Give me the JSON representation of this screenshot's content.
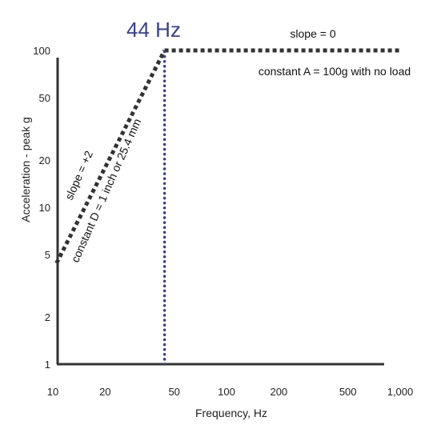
{
  "chart_data": {
    "type": "line",
    "xlabel": "Frequency, Hz",
    "ylabel": "Acceleration - peak g",
    "x_scale": "log",
    "y_scale": "log",
    "xlim": [
      10,
      1000
    ],
    "ylim": [
      1,
      100
    ],
    "x_ticks": [
      10,
      20,
      50,
      100,
      200,
      500,
      1000
    ],
    "x_tick_labels": [
      "10",
      "20",
      "50",
      "100",
      "200",
      "500",
      "1,000"
    ],
    "y_ticks": [
      1,
      2,
      5,
      10,
      20,
      50,
      100
    ],
    "y_tick_labels": [
      "1",
      "2",
      "5",
      "10",
      "20",
      "50",
      "100"
    ],
    "grid": false,
    "series": [
      {
        "style": "dashed",
        "color": "#333333",
        "x": [
          10.5,
          44
        ],
        "y": [
          4.4,
          100
        ]
      },
      {
        "style": "dashed",
        "color": "#333333",
        "x": [
          44,
          1000
        ],
        "y": [
          100,
          100
        ]
      },
      {
        "style": "dotted",
        "color": "#3b3f86",
        "x": [
          44,
          44
        ],
        "y": [
          1,
          100
        ]
      }
    ],
    "annotations": {
      "marker_freq": "44 Hz",
      "slope_zero": "slope = 0",
      "constant_a": "constant A = 100g with no load",
      "slope_two": "slope = +2",
      "constant_d": "constant D = 1 inch or 25.4 mm"
    }
  }
}
